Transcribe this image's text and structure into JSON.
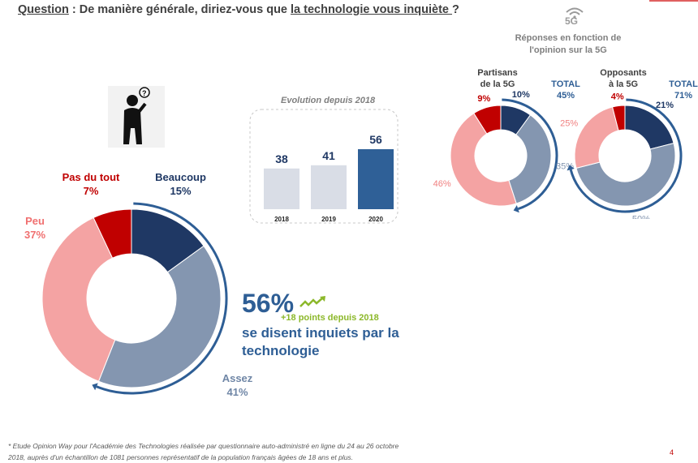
{
  "header": {
    "question_label": "Question",
    "question_sep": " : De manière générale, diriez-vous que ",
    "question_subject": "la technologie vous inquiète ",
    "question_end": "?"
  },
  "headline": {
    "value": "56%",
    "delta": "+18 points depuis 2018",
    "text": "se disent inquiets par la technologie"
  },
  "fiveg": {
    "icon_label": "5G",
    "title_line1": "Réponses en fonction de",
    "title_line2": "l'opinion sur la 5G"
  },
  "footnote": {
    "line1": "* Etude Opinion Way pour l'Académie des Technologies réalisée par questionnaire auto-administré en ligne du 24 au 26 octobre",
    "line2": "2018, auprès d'un échantillon de 1081 personnes représentatif de la population français âgées de 18 ans et plus."
  },
  "page_number": "4",
  "colors": {
    "beaucoup": "#1f3864",
    "assez": "#8496b0",
    "peu": "#f4a3a3",
    "pas_du_tout": "#c00000",
    "accent": "#2e5e95",
    "green": "#8cb82a"
  },
  "chart_data": [
    {
      "type": "pie",
      "variant": "donut",
      "categories": [
        "Beaucoup",
        "Assez",
        "Peu",
        "Pas du tout"
      ],
      "values": [
        15,
        41,
        37,
        7
      ],
      "labels": [
        "15%",
        "41%",
        "37%",
        "7%"
      ]
    },
    {
      "type": "bar",
      "title": "Evolution depuis 2018",
      "categories": [
        "2018",
        "2019",
        "2020"
      ],
      "values": [
        38,
        41,
        56
      ],
      "labels": [
        "38",
        "41",
        "56"
      ],
      "ylim": [
        0,
        56
      ]
    },
    {
      "type": "pie",
      "variant": "donut",
      "title_line1": "Partisans",
      "title_line2": "de la 5G",
      "total_label": "TOTAL",
      "total": "45%",
      "values": [
        10,
        35,
        46,
        9
      ],
      "labels": [
        "10%",
        "35%",
        "46%",
        "9%"
      ]
    },
    {
      "type": "pie",
      "variant": "donut",
      "title_line1": "Opposants",
      "title_line2": "à la 5G",
      "total_label": "TOTAL",
      "total": "71%",
      "values": [
        21,
        50,
        25,
        4
      ],
      "labels": [
        "21%",
        "50%",
        "25%",
        "4%"
      ]
    }
  ]
}
